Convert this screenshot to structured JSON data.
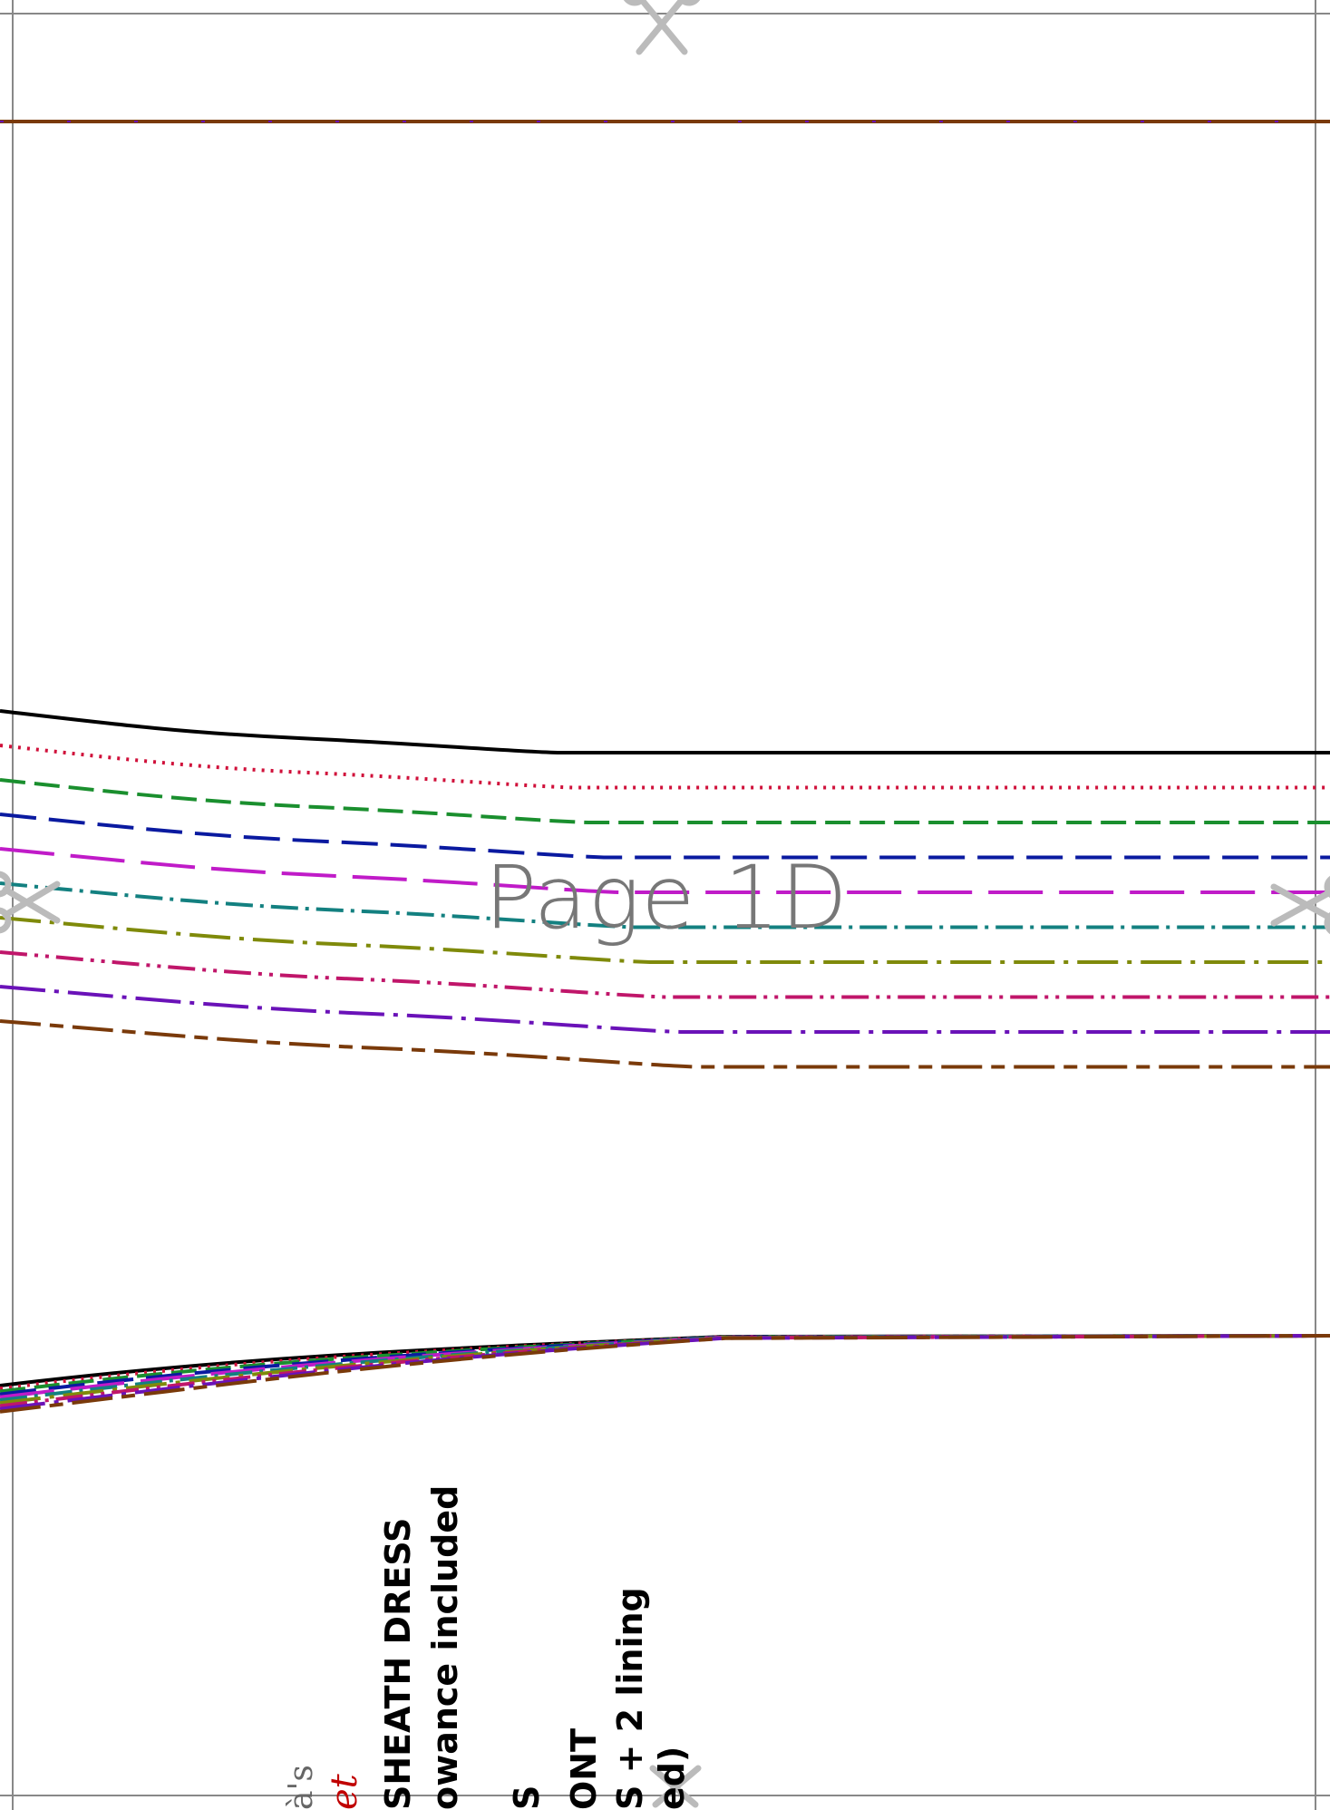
{
  "page": {
    "label": "Page 1D"
  },
  "size_lines": [
    {
      "name": "size-1",
      "color": "#000000",
      "style": "solid"
    },
    {
      "name": "size-2",
      "color": "#d0103a",
      "style": "dotted"
    },
    {
      "name": "size-3",
      "color": "#1a8f2e",
      "style": "dashed"
    },
    {
      "name": "size-4",
      "color": "#0a1aa0",
      "style": "long-dash"
    },
    {
      "name": "size-5",
      "color": "#c01bc8",
      "style": "long-dash-gap"
    },
    {
      "name": "size-6",
      "color": "#138080",
      "style": "dash-dot"
    },
    {
      "name": "size-7",
      "color": "#7f8a0a",
      "style": "long-dash-dot"
    },
    {
      "name": "size-8",
      "color": "#c0166a",
      "style": "dash-dot-dot"
    },
    {
      "name": "size-9",
      "color": "#6a12b8",
      "style": "dash-dot-long"
    },
    {
      "name": "size-10",
      "color": "#7a3a0a",
      "style": "long-dash-short"
    }
  ],
  "pattern_info": {
    "brand": "à's",
    "brand_script": "et",
    "title": "SHEATH DRESS",
    "allowance": "owance included",
    "size_line": "S",
    "piece": "ONT",
    "cut": "S + 2 lining",
    "fold": "ed)"
  },
  "icons": {
    "scissors": "scissors-icon"
  },
  "colors": {
    "page_border": "#888888",
    "watermark": "#777777",
    "scissors": "#bbbbbb"
  }
}
